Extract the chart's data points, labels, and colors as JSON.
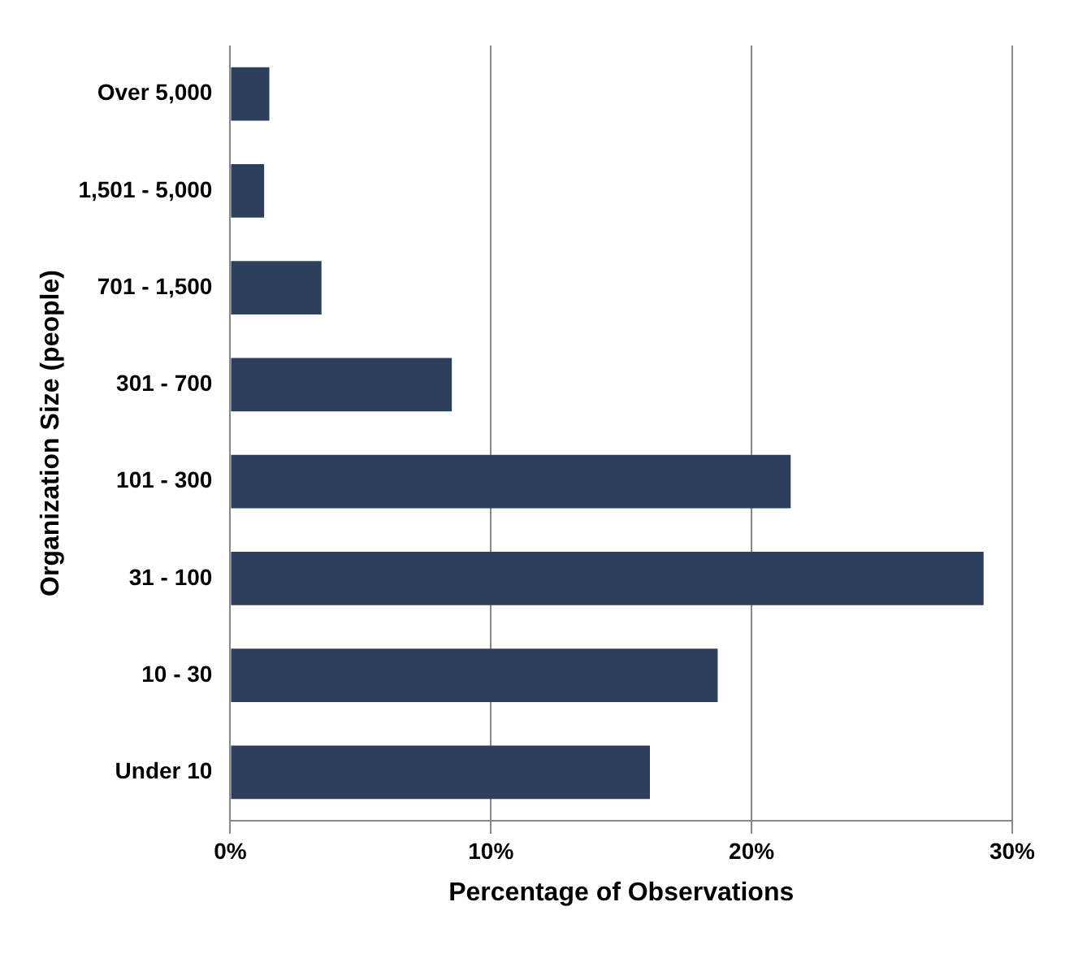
{
  "chart_data": {
    "type": "bar",
    "orientation": "horizontal",
    "xlabel": "Percentage of Observations",
    "ylabel": "Organization Size (people)",
    "categories": [
      "Over 5,000",
      "1,501 - 5,000",
      "701 - 1,500",
      "301 - 700",
      "101 - 300",
      "31 - 100",
      "10 - 30",
      "Under 10"
    ],
    "values": [
      1.5,
      1.3,
      3.5,
      8.5,
      21.5,
      28.9,
      18.7,
      16.1
    ],
    "color": "#2e3f5e",
    "xlim": [
      0,
      30
    ],
    "xticks": [
      {
        "value": 0,
        "label": "0%"
      },
      {
        "value": 10,
        "label": "10%"
      },
      {
        "value": 20,
        "label": "20%"
      },
      {
        "value": 30,
        "label": "30%"
      }
    ],
    "grid": "x",
    "legend": false
  }
}
